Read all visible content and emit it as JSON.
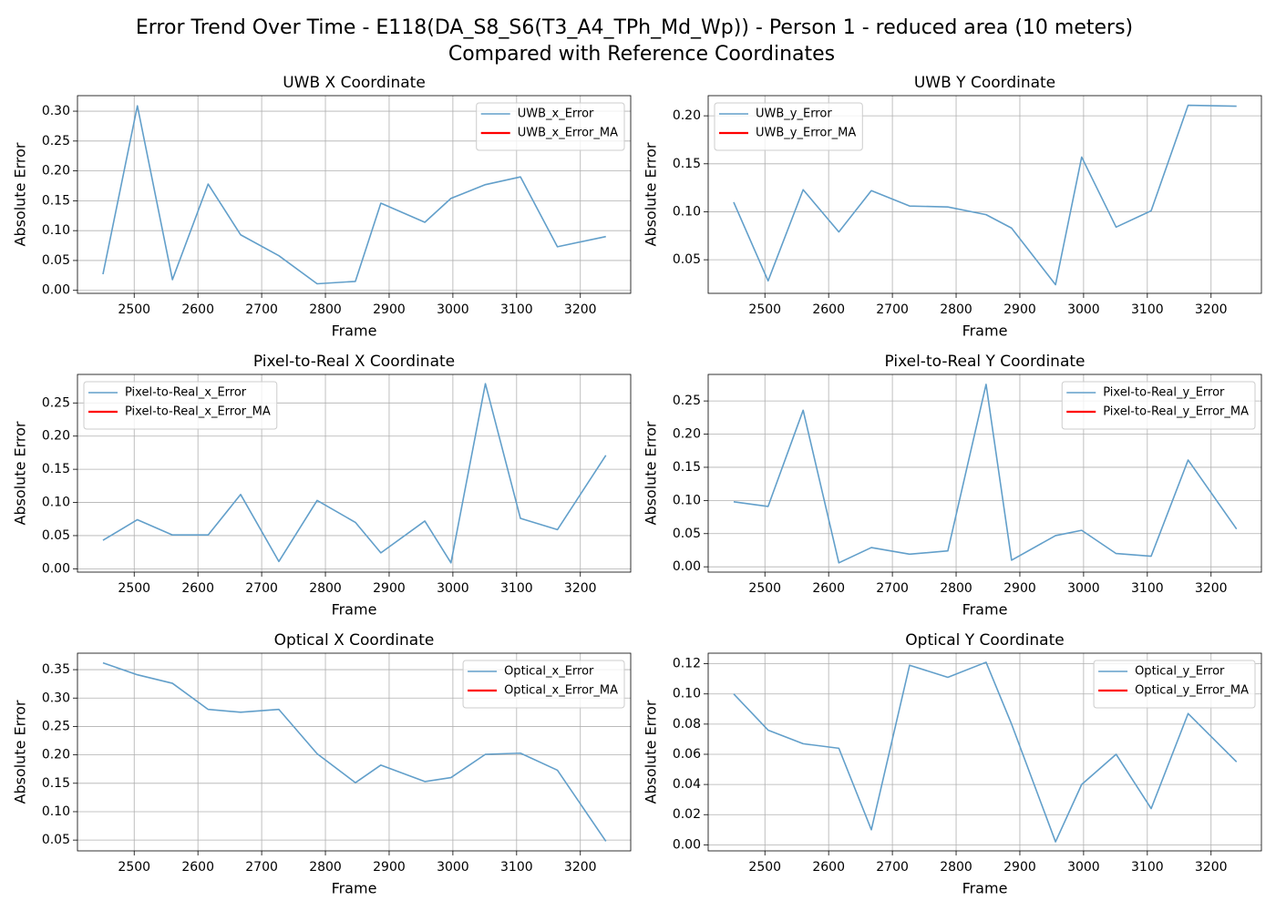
{
  "title": [
    "Error Trend Over Time - E118(DA_S8_S6(T3_A4_TPh_Md_Wp)) - Person 1 - reduced area (10 meters)",
    "Compared with Reference Coordinates"
  ],
  "chart_data": [
    {
      "type": "line",
      "title": "UWB X Coordinate",
      "x_label": "Frame",
      "y_label": "Absolute Error",
      "grid": true,
      "legend": "upper right",
      "x": [
        2451,
        2505,
        2560,
        2616,
        2667,
        2727,
        2787,
        2847,
        2887,
        2956,
        2997,
        3051,
        3106,
        3164,
        3240
      ],
      "series": [
        {
          "name": "UWB_x_Error",
          "color": "#629fca",
          "values": [
            0.027,
            0.309,
            0.018,
            0.178,
            0.093,
            0.058,
            0.011,
            0.015,
            0.146,
            0.114,
            0.154,
            0.177,
            0.19,
            0.073,
            0.09
          ]
        },
        {
          "name": "UWB_x_Error_MA",
          "color": "#ff0000",
          "values": [
            null,
            null,
            null,
            null,
            null,
            null,
            null,
            null,
            null,
            null,
            null,
            null,
            null,
            null,
            null
          ]
        }
      ],
      "xlim": [
        2411,
        3279
      ],
      "xticks": [
        2500,
        2600,
        2700,
        2800,
        2900,
        3000,
        3100,
        3200
      ],
      "ylim": [
        -0.005,
        0.326
      ],
      "yticks": [
        {
          "value": 0,
          "label": "0.00"
        },
        {
          "value": 0.05,
          "label": "0.05"
        },
        {
          "value": 0.1,
          "label": "0.10"
        },
        {
          "value": 0.15,
          "label": "0.15"
        },
        {
          "value": 0.2,
          "label": "0.20"
        },
        {
          "value": 0.25,
          "label": "0.25"
        },
        {
          "value": 0.3,
          "label": "0.30"
        }
      ]
    },
    {
      "type": "line",
      "title": "UWB Y Coordinate",
      "x_label": "Frame",
      "y_label": "Absolute Error",
      "grid": true,
      "legend": "upper left",
      "x": [
        2451,
        2505,
        2560,
        2616,
        2667,
        2727,
        2787,
        2847,
        2887,
        2956,
        2997,
        3051,
        3106,
        3164,
        3240
      ],
      "series": [
        {
          "name": "UWB_y_Error",
          "color": "#629fca",
          "values": [
            0.11,
            0.028,
            0.123,
            0.079,
            0.122,
            0.106,
            0.105,
            0.097,
            0.083,
            0.024,
            0.157,
            0.084,
            0.101,
            0.211,
            0.21
          ]
        },
        {
          "name": "UWB_y_Error_MA",
          "color": "#ff0000",
          "values": [
            null,
            null,
            null,
            null,
            null,
            null,
            null,
            null,
            null,
            null,
            null,
            null,
            null,
            null,
            null
          ]
        }
      ],
      "xlim": [
        2411,
        3279
      ],
      "xticks": [
        2500,
        2600,
        2700,
        2800,
        2900,
        3000,
        3100,
        3200
      ],
      "ylim": [
        0.015,
        0.221
      ],
      "yticks": [
        {
          "value": 0.05,
          "label": "0.05"
        },
        {
          "value": 0.1,
          "label": "0.10"
        },
        {
          "value": 0.15,
          "label": "0.15"
        },
        {
          "value": 0.2,
          "label": "0.20"
        }
      ]
    },
    {
      "type": "line",
      "title": "Pixel-to-Real X Coordinate",
      "x_label": "Frame",
      "y_label": "Absolute Error",
      "grid": true,
      "legend": "upper left",
      "x": [
        2451,
        2505,
        2560,
        2616,
        2667,
        2727,
        2787,
        2847,
        2887,
        2956,
        2997,
        3051,
        3106,
        3164,
        3240
      ],
      "series": [
        {
          "name": "Pixel-to-Real_x_Error",
          "color": "#629fca",
          "values": [
            0.043,
            0.074,
            0.051,
            0.051,
            0.112,
            0.011,
            0.103,
            0.07,
            0.024,
            0.072,
            0.009,
            0.279,
            0.076,
            0.059,
            0.171
          ]
        },
        {
          "name": "Pixel-to-Real_x_Error_MA",
          "color": "#ff0000",
          "values": [
            null,
            null,
            null,
            null,
            null,
            null,
            null,
            null,
            null,
            null,
            null,
            null,
            null,
            null,
            null
          ]
        }
      ],
      "xlim": [
        2411,
        3279
      ],
      "xticks": [
        2500,
        2600,
        2700,
        2800,
        2900,
        3000,
        3100,
        3200
      ],
      "ylim": [
        -0.005,
        0.293
      ],
      "yticks": [
        {
          "value": 0,
          "label": "0.00"
        },
        {
          "value": 0.05,
          "label": "0.05"
        },
        {
          "value": 0.1,
          "label": "0.10"
        },
        {
          "value": 0.15,
          "label": "0.15"
        },
        {
          "value": 0.2,
          "label": "0.20"
        },
        {
          "value": 0.25,
          "label": "0.25"
        }
      ]
    },
    {
      "type": "line",
      "title": "Pixel-to-Real Y Coordinate",
      "x_label": "Frame",
      "y_label": "Absolute Error",
      "grid": true,
      "legend": "upper right",
      "x": [
        2451,
        2505,
        2560,
        2616,
        2667,
        2727,
        2787,
        2847,
        2887,
        2956,
        2997,
        3051,
        3106,
        3164,
        3240
      ],
      "series": [
        {
          "name": "Pixel-to-Real_y_Error",
          "color": "#629fca",
          "values": [
            0.098,
            0.091,
            0.236,
            0.006,
            0.029,
            0.019,
            0.024,
            0.275,
            0.01,
            0.047,
            0.055,
            0.02,
            0.016,
            0.161,
            0.057
          ]
        },
        {
          "name": "Pixel-to-Real_y_Error_MA",
          "color": "#ff0000",
          "values": [
            null,
            null,
            null,
            null,
            null,
            null,
            null,
            null,
            null,
            null,
            null,
            null,
            null,
            null,
            null
          ]
        }
      ],
      "xlim": [
        2411,
        3279
      ],
      "xticks": [
        2500,
        2600,
        2700,
        2800,
        2900,
        3000,
        3100,
        3200
      ],
      "ylim": [
        -0.008,
        0.29
      ],
      "yticks": [
        {
          "value": 0,
          "label": "0.00"
        },
        {
          "value": 0.05,
          "label": "0.05"
        },
        {
          "value": 0.1,
          "label": "0.10"
        },
        {
          "value": 0.15,
          "label": "0.15"
        },
        {
          "value": 0.2,
          "label": "0.20"
        },
        {
          "value": 0.25,
          "label": "0.25"
        }
      ]
    },
    {
      "type": "line",
      "title": "Optical X Coordinate",
      "x_label": "Frame",
      "y_label": "Absolute Error",
      "grid": true,
      "legend": "upper right",
      "x": [
        2451,
        2505,
        2560,
        2616,
        2667,
        2727,
        2787,
        2847,
        2887,
        2956,
        2997,
        3051,
        3106,
        3164,
        3240
      ],
      "series": [
        {
          "name": "Optical_x_Error",
          "color": "#629fca",
          "values": [
            0.362,
            0.341,
            0.326,
            0.28,
            0.275,
            0.28,
            0.202,
            0.151,
            0.182,
            0.153,
            0.16,
            0.201,
            0.203,
            0.173,
            0.048
          ]
        },
        {
          "name": "Optical_x_Error_MA",
          "color": "#ff0000",
          "values": [
            null,
            null,
            null,
            null,
            null,
            null,
            null,
            null,
            null,
            null,
            null,
            null,
            null,
            null,
            null
          ]
        }
      ],
      "xlim": [
        2411,
        3279
      ],
      "xticks": [
        2500,
        2600,
        2700,
        2800,
        2900,
        3000,
        3100,
        3200
      ],
      "ylim": [
        0.031,
        0.379
      ],
      "yticks": [
        {
          "value": 0.05,
          "label": "0.05"
        },
        {
          "value": 0.1,
          "label": "0.10"
        },
        {
          "value": 0.15,
          "label": "0.15"
        },
        {
          "value": 0.2,
          "label": "0.20"
        },
        {
          "value": 0.25,
          "label": "0.25"
        },
        {
          "value": 0.3,
          "label": "0.30"
        },
        {
          "value": 0.35,
          "label": "0.35"
        }
      ]
    },
    {
      "type": "line",
      "title": "Optical Y Coordinate",
      "x_label": "Frame",
      "y_label": "Absolute Error",
      "grid": true,
      "legend": "upper right",
      "x": [
        2451,
        2505,
        2560,
        2616,
        2667,
        2727,
        2787,
        2847,
        2887,
        2956,
        2997,
        3051,
        3106,
        3164,
        3240
      ],
      "series": [
        {
          "name": "Optical_y_Error",
          "color": "#629fca",
          "values": [
            0.1,
            0.076,
            0.067,
            0.064,
            0.01,
            0.119,
            0.111,
            0.121,
            0.08,
            0.002,
            0.04,
            0.06,
            0.024,
            0.087,
            0.055
          ]
        },
        {
          "name": "Optical_y_Error_MA",
          "color": "#ff0000",
          "values": [
            null,
            null,
            null,
            null,
            null,
            null,
            null,
            null,
            null,
            null,
            null,
            null,
            null,
            null,
            null
          ]
        }
      ],
      "xlim": [
        2411,
        3279
      ],
      "xticks": [
        2500,
        2600,
        2700,
        2800,
        2900,
        3000,
        3100,
        3200
      ],
      "ylim": [
        -0.004,
        0.127
      ],
      "yticks": [
        {
          "value": 0,
          "label": "0.00"
        },
        {
          "value": 0.02,
          "label": "0.02"
        },
        {
          "value": 0.04,
          "label": "0.04"
        },
        {
          "value": 0.06,
          "label": "0.06"
        },
        {
          "value": 0.08,
          "label": "0.08"
        },
        {
          "value": 0.1,
          "label": "0.10"
        },
        {
          "value": 0.12,
          "label": "0.12"
        }
      ]
    }
  ]
}
